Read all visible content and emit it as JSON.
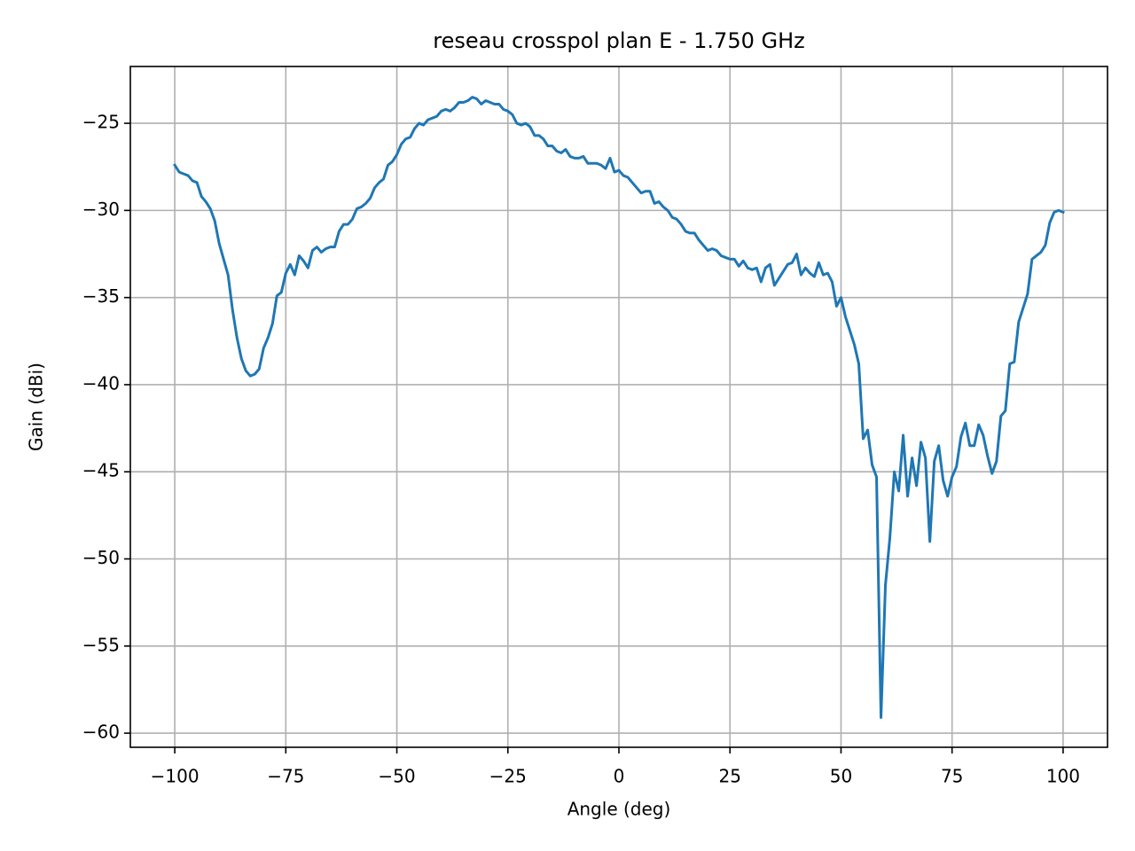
{
  "chart_data": {
    "type": "line",
    "title": "reseau crosspol plan E - 1.750 GHz",
    "xlabel": "Angle (deg)",
    "ylabel": "Gain (dBi)",
    "color": "#1f77b4",
    "grid": true,
    "xlim": [
      -110,
      110
    ],
    "ylim": [
      -60.81,
      -21.74
    ],
    "xticks": [
      {
        "value": -100,
        "label": "−100"
      },
      {
        "value": -75,
        "label": "−75"
      },
      {
        "value": -50,
        "label": "−50"
      },
      {
        "value": -25,
        "label": "−25"
      },
      0,
      25,
      50,
      75,
      100
    ],
    "yticks": [
      {
        "value": -60,
        "label": "−60"
      },
      {
        "value": -55,
        "label": "−55"
      },
      {
        "value": -50,
        "label": "−50"
      },
      {
        "value": -45,
        "label": "−45"
      },
      {
        "value": -40,
        "label": "−40"
      },
      {
        "value": -35,
        "label": "−35"
      },
      {
        "value": -30,
        "label": "−30"
      },
      {
        "value": -25,
        "label": "−25"
      }
    ],
    "x": [
      -100,
      -99,
      -98,
      -97,
      -96,
      -95,
      -94,
      -93,
      -92,
      -91,
      -90,
      -89,
      -88,
      -87,
      -86,
      -85,
      -84,
      -83,
      -82,
      -81,
      -80,
      -79,
      -78,
      -77,
      -76,
      -75,
      -74,
      -73,
      -72,
      -71,
      -70,
      -69,
      -68,
      -67,
      -66,
      -65,
      -64,
      -63,
      -62,
      -61,
      -60,
      -59,
      -58,
      -57,
      -56,
      -55,
      -54,
      -53,
      -52,
      -51,
      -50,
      -49,
      -48,
      -47,
      -46,
      -45,
      -44,
      -43,
      -42,
      -41,
      -40,
      -39,
      -38,
      -37,
      -36,
      -35,
      -34,
      -33,
      -32,
      -31,
      -30,
      -29,
      -28,
      -27,
      -26,
      -25,
      -24,
      -23,
      -22,
      -21,
      -20,
      -19,
      -18,
      -17,
      -16,
      -15,
      -14,
      -13,
      -12,
      -11,
      -10,
      -9,
      -8,
      -7,
      -6,
      -5,
      -4,
      -3,
      -2,
      -1,
      0,
      1,
      2,
      3,
      4,
      5,
      6,
      7,
      8,
      9,
      10,
      11,
      12,
      13,
      14,
      15,
      16,
      17,
      18,
      19,
      20,
      21,
      22,
      23,
      24,
      25,
      26,
      27,
      28,
      29,
      30,
      31,
      32,
      33,
      34,
      35,
      36,
      37,
      38,
      39,
      40,
      41,
      42,
      43,
      44,
      45,
      46,
      47,
      48,
      49,
      50,
      51,
      52,
      53,
      54,
      55,
      56,
      57,
      58,
      59,
      60,
      61,
      62,
      63,
      64,
      65,
      66,
      67,
      68,
      69,
      70,
      71,
      72,
      73,
      74,
      75,
      76,
      77,
      78,
      79,
      80,
      81,
      82,
      83,
      84,
      85,
      86,
      87,
      88,
      89,
      90,
      91,
      92,
      93,
      94,
      95,
      96,
      97,
      98,
      99,
      100
    ],
    "values": [
      -27.4,
      -27.8,
      -27.9,
      -28.0,
      -28.3,
      -28.4,
      -29.2,
      -29.5,
      -29.9,
      -30.6,
      -31.9,
      -32.8,
      -33.7,
      -35.7,
      -37.3,
      -38.5,
      -39.2,
      -39.5,
      -39.4,
      -39.1,
      -37.9,
      -37.3,
      -36.5,
      -34.9,
      -34.7,
      -33.6,
      -33.1,
      -33.7,
      -32.6,
      -32.9,
      -33.3,
      -32.3,
      -32.1,
      -32.4,
      -32.2,
      -32.1,
      -32.1,
      -31.2,
      -30.8,
      -30.8,
      -30.5,
      -29.9,
      -29.8,
      -29.6,
      -29.3,
      -28.7,
      -28.4,
      -28.2,
      -27.4,
      -27.2,
      -26.8,
      -26.2,
      -25.9,
      -25.8,
      -25.3,
      -25.0,
      -25.1,
      -24.8,
      -24.7,
      -24.6,
      -24.3,
      -24.2,
      -24.3,
      -24.1,
      -23.8,
      -23.8,
      -23.7,
      -23.5,
      -23.6,
      -23.9,
      -23.7,
      -23.8,
      -23.9,
      -23.9,
      -24.2,
      -24.3,
      -24.5,
      -25.0,
      -25.1,
      -25.0,
      -25.2,
      -25.7,
      -25.7,
      -25.9,
      -26.3,
      -26.3,
      -26.6,
      -26.7,
      -26.5,
      -26.9,
      -27.0,
      -27.0,
      -26.9,
      -27.3,
      -27.3,
      -27.3,
      -27.4,
      -27.6,
      -27.0,
      -27.8,
      -27.7,
      -28.0,
      -28.1,
      -28.4,
      -28.7,
      -29.0,
      -28.9,
      -28.9,
      -29.6,
      -29.5,
      -29.8,
      -30.0,
      -30.4,
      -30.5,
      -30.8,
      -31.2,
      -31.3,
      -31.3,
      -31.7,
      -32.0,
      -32.3,
      -32.2,
      -32.3,
      -32.6,
      -32.7,
      -32.8,
      -32.8,
      -33.2,
      -32.9,
      -33.3,
      -33.4,
      -33.3,
      -34.1,
      -33.3,
      -33.1,
      -34.3,
      -33.9,
      -33.5,
      -33.1,
      -33.0,
      -32.5,
      -33.7,
      -33.3,
      -33.6,
      -33.8,
      -33.0,
      -33.7,
      -33.6,
      -34.1,
      -35.5,
      -35.0,
      -36.1,
      -36.9,
      -37.7,
      -38.8,
      -43.1,
      -42.6,
      -44.6,
      -45.3,
      -59.1,
      -51.5,
      -48.8,
      -45.0,
      -46.1,
      -42.9,
      -46.4,
      -44.2,
      -45.8,
      -43.3,
      -44.2,
      -49.0,
      -44.4,
      -43.5,
      -45.5,
      -46.4,
      -45.3,
      -44.7,
      -43.0,
      -42.2,
      -43.5,
      -43.5,
      -42.3,
      -42.9,
      -44.1,
      -45.1,
      -44.4,
      -41.8,
      -41.5,
      -38.8,
      -38.7,
      -36.4,
      -35.6,
      -34.8,
      -32.8,
      -32.6,
      -32.4,
      -32.0,
      -30.7,
      -30.1,
      -30.0,
      -30.1
    ]
  }
}
